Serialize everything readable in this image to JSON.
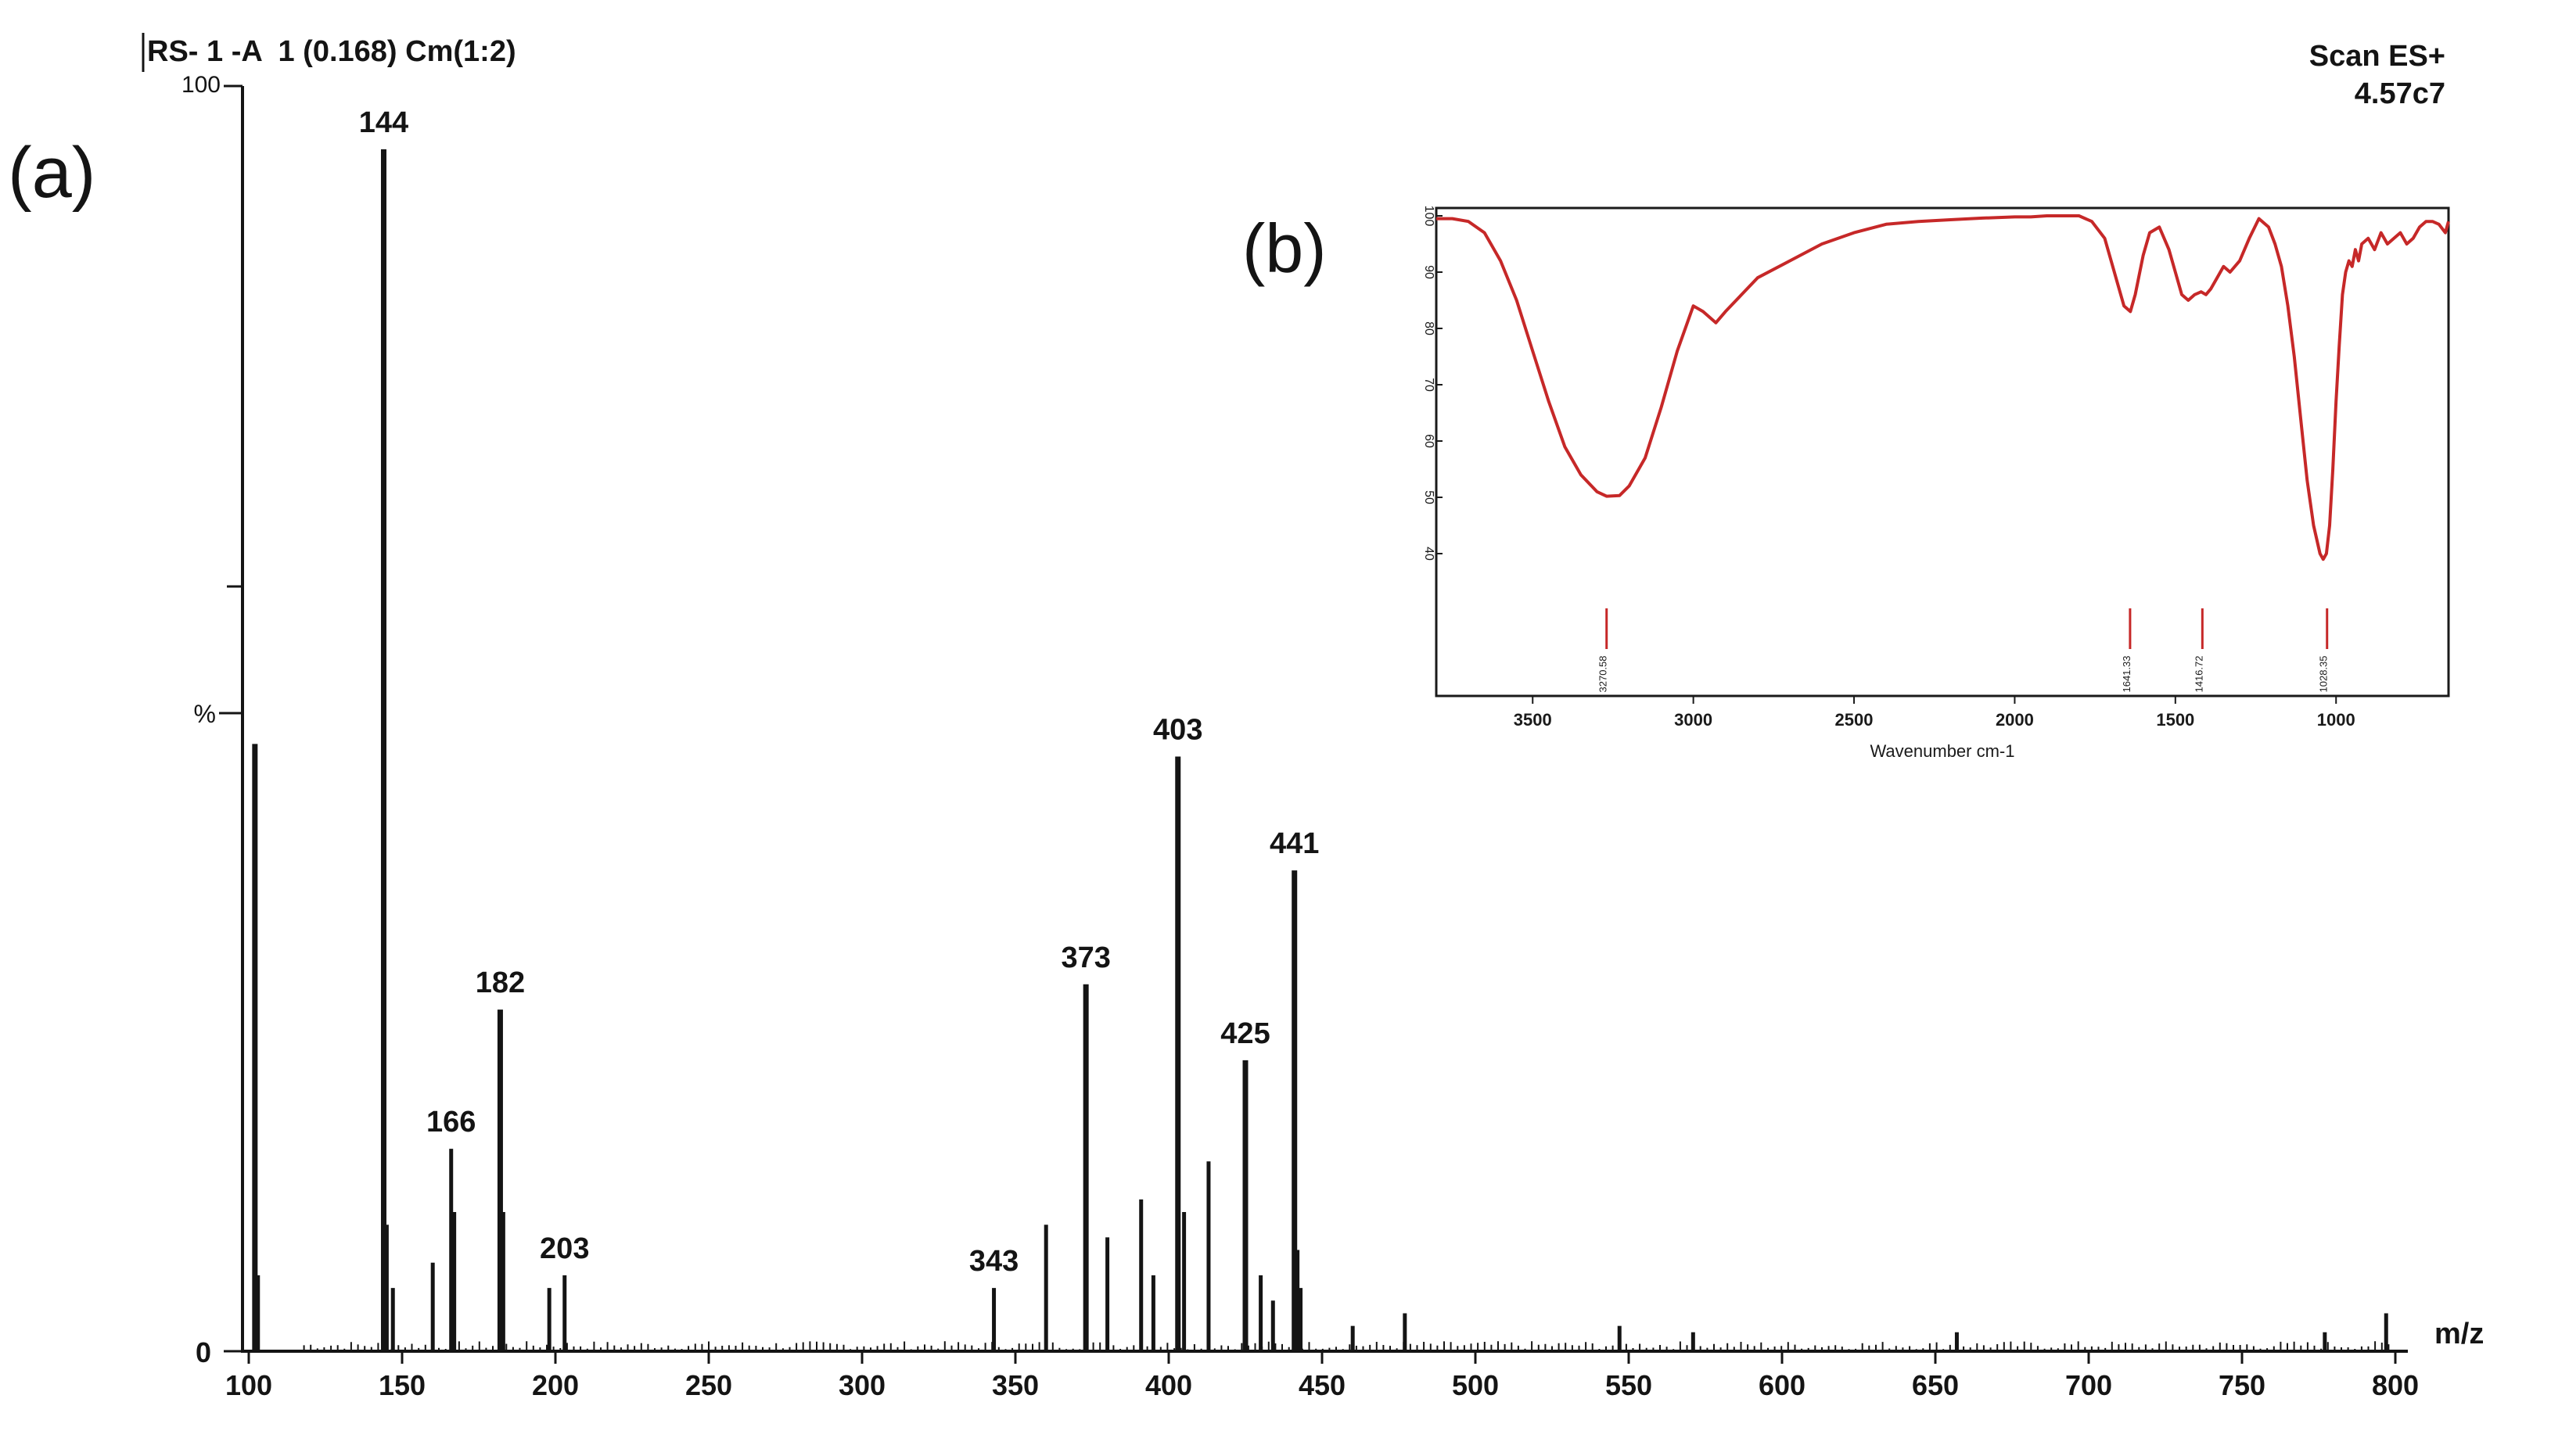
{
  "panel_labels": {
    "a": "(a)",
    "b": "(b)"
  },
  "colors": {
    "ms_ink": "#141414",
    "ir_line": "#c62828",
    "ir_frame": "#1a1a1a"
  },
  "chart_data": [
    {
      "type": "bar",
      "panel": "(a)",
      "title": "RS- 1 -A  1 (0.168) Cm(1:2)",
      "subtitle": "Scan ES+",
      "annotation": "4.57c7",
      "xlabel": "m/z",
      "ylabel": "%",
      "xlim": [
        100,
        800
      ],
      "ylim": [
        0,
        100
      ],
      "x_ticks": [
        100,
        150,
        200,
        250,
        300,
        350,
        400,
        450,
        500,
        550,
        600,
        650,
        700,
        750,
        800
      ],
      "y_ticks": [
        0,
        100
      ],
      "grid": false,
      "peaks": [
        {
          "mz": 102,
          "intensity": 48
        },
        {
          "mz": 103,
          "intensity": 6
        },
        {
          "mz": 144,
          "intensity": 95,
          "label": "144"
        },
        {
          "mz": 145,
          "intensity": 10
        },
        {
          "mz": 147,
          "intensity": 5
        },
        {
          "mz": 160,
          "intensity": 7
        },
        {
          "mz": 166,
          "intensity": 16,
          "label": "166"
        },
        {
          "mz": 167,
          "intensity": 11
        },
        {
          "mz": 182,
          "intensity": 27,
          "label": "182"
        },
        {
          "mz": 183,
          "intensity": 11
        },
        {
          "mz": 198,
          "intensity": 5
        },
        {
          "mz": 203,
          "intensity": 6,
          "label": "203"
        },
        {
          "mz": 343,
          "intensity": 5,
          "label": "343"
        },
        {
          "mz": 360,
          "intensity": 10
        },
        {
          "mz": 373,
          "intensity": 29,
          "label": "373"
        },
        {
          "mz": 380,
          "intensity": 9
        },
        {
          "mz": 391,
          "intensity": 12
        },
        {
          "mz": 395,
          "intensity": 6
        },
        {
          "mz": 403,
          "intensity": 47,
          "label": "403"
        },
        {
          "mz": 405,
          "intensity": 11
        },
        {
          "mz": 413,
          "intensity": 15
        },
        {
          "mz": 425,
          "intensity": 23,
          "label": "425"
        },
        {
          "mz": 430,
          "intensity": 6
        },
        {
          "mz": 434,
          "intensity": 4
        },
        {
          "mz": 441,
          "intensity": 38,
          "label": "441"
        },
        {
          "mz": 442,
          "intensity": 8
        },
        {
          "mz": 443,
          "intensity": 5
        },
        {
          "mz": 460,
          "intensity": 2
        },
        {
          "mz": 477,
          "intensity": 3
        },
        {
          "mz": 547,
          "intensity": 2
        },
        {
          "mz": 571,
          "intensity": 1.5
        },
        {
          "mz": 657,
          "intensity": 1.5
        },
        {
          "mz": 777,
          "intensity": 1.5
        },
        {
          "mz": 797,
          "intensity": 3
        }
      ]
    },
    {
      "type": "line",
      "panel": "(b)",
      "xlabel": "Wavenumber cm-1",
      "xlim": [
        3800,
        650
      ],
      "ylim": [
        30,
        100
      ],
      "x_ticks": [
        3500,
        3000,
        2500,
        2000,
        1500,
        1000
      ],
      "y_ticks": [
        40,
        50,
        60,
        70,
        80,
        90,
        100
      ],
      "grid": false,
      "series": [
        {
          "x": [
            3800,
            3750,
            3700,
            3650,
            3600,
            3550,
            3500,
            3450,
            3400,
            3350,
            3300,
            3270,
            3230,
            3200,
            3150,
            3100,
            3050,
            3000,
            2970,
            2930,
            2900,
            2850,
            2800,
            2700,
            2600,
            2500,
            2400,
            2300,
            2200,
            2100,
            2000,
            1950,
            1900,
            1850,
            1800,
            1760,
            1720,
            1700,
            1680,
            1660,
            1640,
            1625,
            1600,
            1580,
            1550,
            1520,
            1500,
            1480,
            1460,
            1440,
            1420,
            1405,
            1390,
            1370,
            1350,
            1330,
            1300,
            1270,
            1240,
            1210,
            1190,
            1170,
            1150,
            1130,
            1110,
            1090,
            1070,
            1050,
            1040,
            1030,
            1020,
            1010,
            1000,
            990,
            980,
            970,
            960,
            950,
            940,
            930,
            920,
            900,
            880,
            860,
            840,
            820,
            800,
            780,
            760,
            740,
            720,
            700,
            680,
            660,
            650
          ],
          "y": [
            99.5,
            99.5,
            99,
            97,
            92,
            85,
            76,
            67,
            59,
            54,
            51,
            50.2,
            50.3,
            52,
            57,
            66,
            76,
            84,
            83,
            81,
            83,
            86,
            89,
            92,
            95,
            97,
            98.5,
            99,
            99.3,
            99.6,
            99.8,
            99.8,
            100,
            100,
            100,
            99,
            96,
            92,
            88,
            84,
            83,
            86,
            93,
            97,
            98,
            94,
            90,
            86,
            85,
            86,
            86.5,
            86,
            87,
            89,
            91,
            90,
            92,
            96,
            99.5,
            98,
            95,
            91,
            84,
            75,
            64,
            53,
            45,
            40,
            39,
            40,
            45,
            55,
            67,
            77,
            86,
            90,
            92,
            91,
            94,
            92,
            95,
            96,
            94,
            97,
            95,
            96,
            97,
            95,
            96,
            98,
            99,
            99,
            98.5,
            97,
            99
          ]
        }
      ],
      "peak_markers": [
        {
          "x": 3270,
          "label": "3270.58"
        },
        {
          "x": 1641,
          "label": "1641.33"
        },
        {
          "x": 1416,
          "label": "1416.72"
        },
        {
          "x": 1028,
          "label": "1028.35"
        }
      ]
    }
  ]
}
